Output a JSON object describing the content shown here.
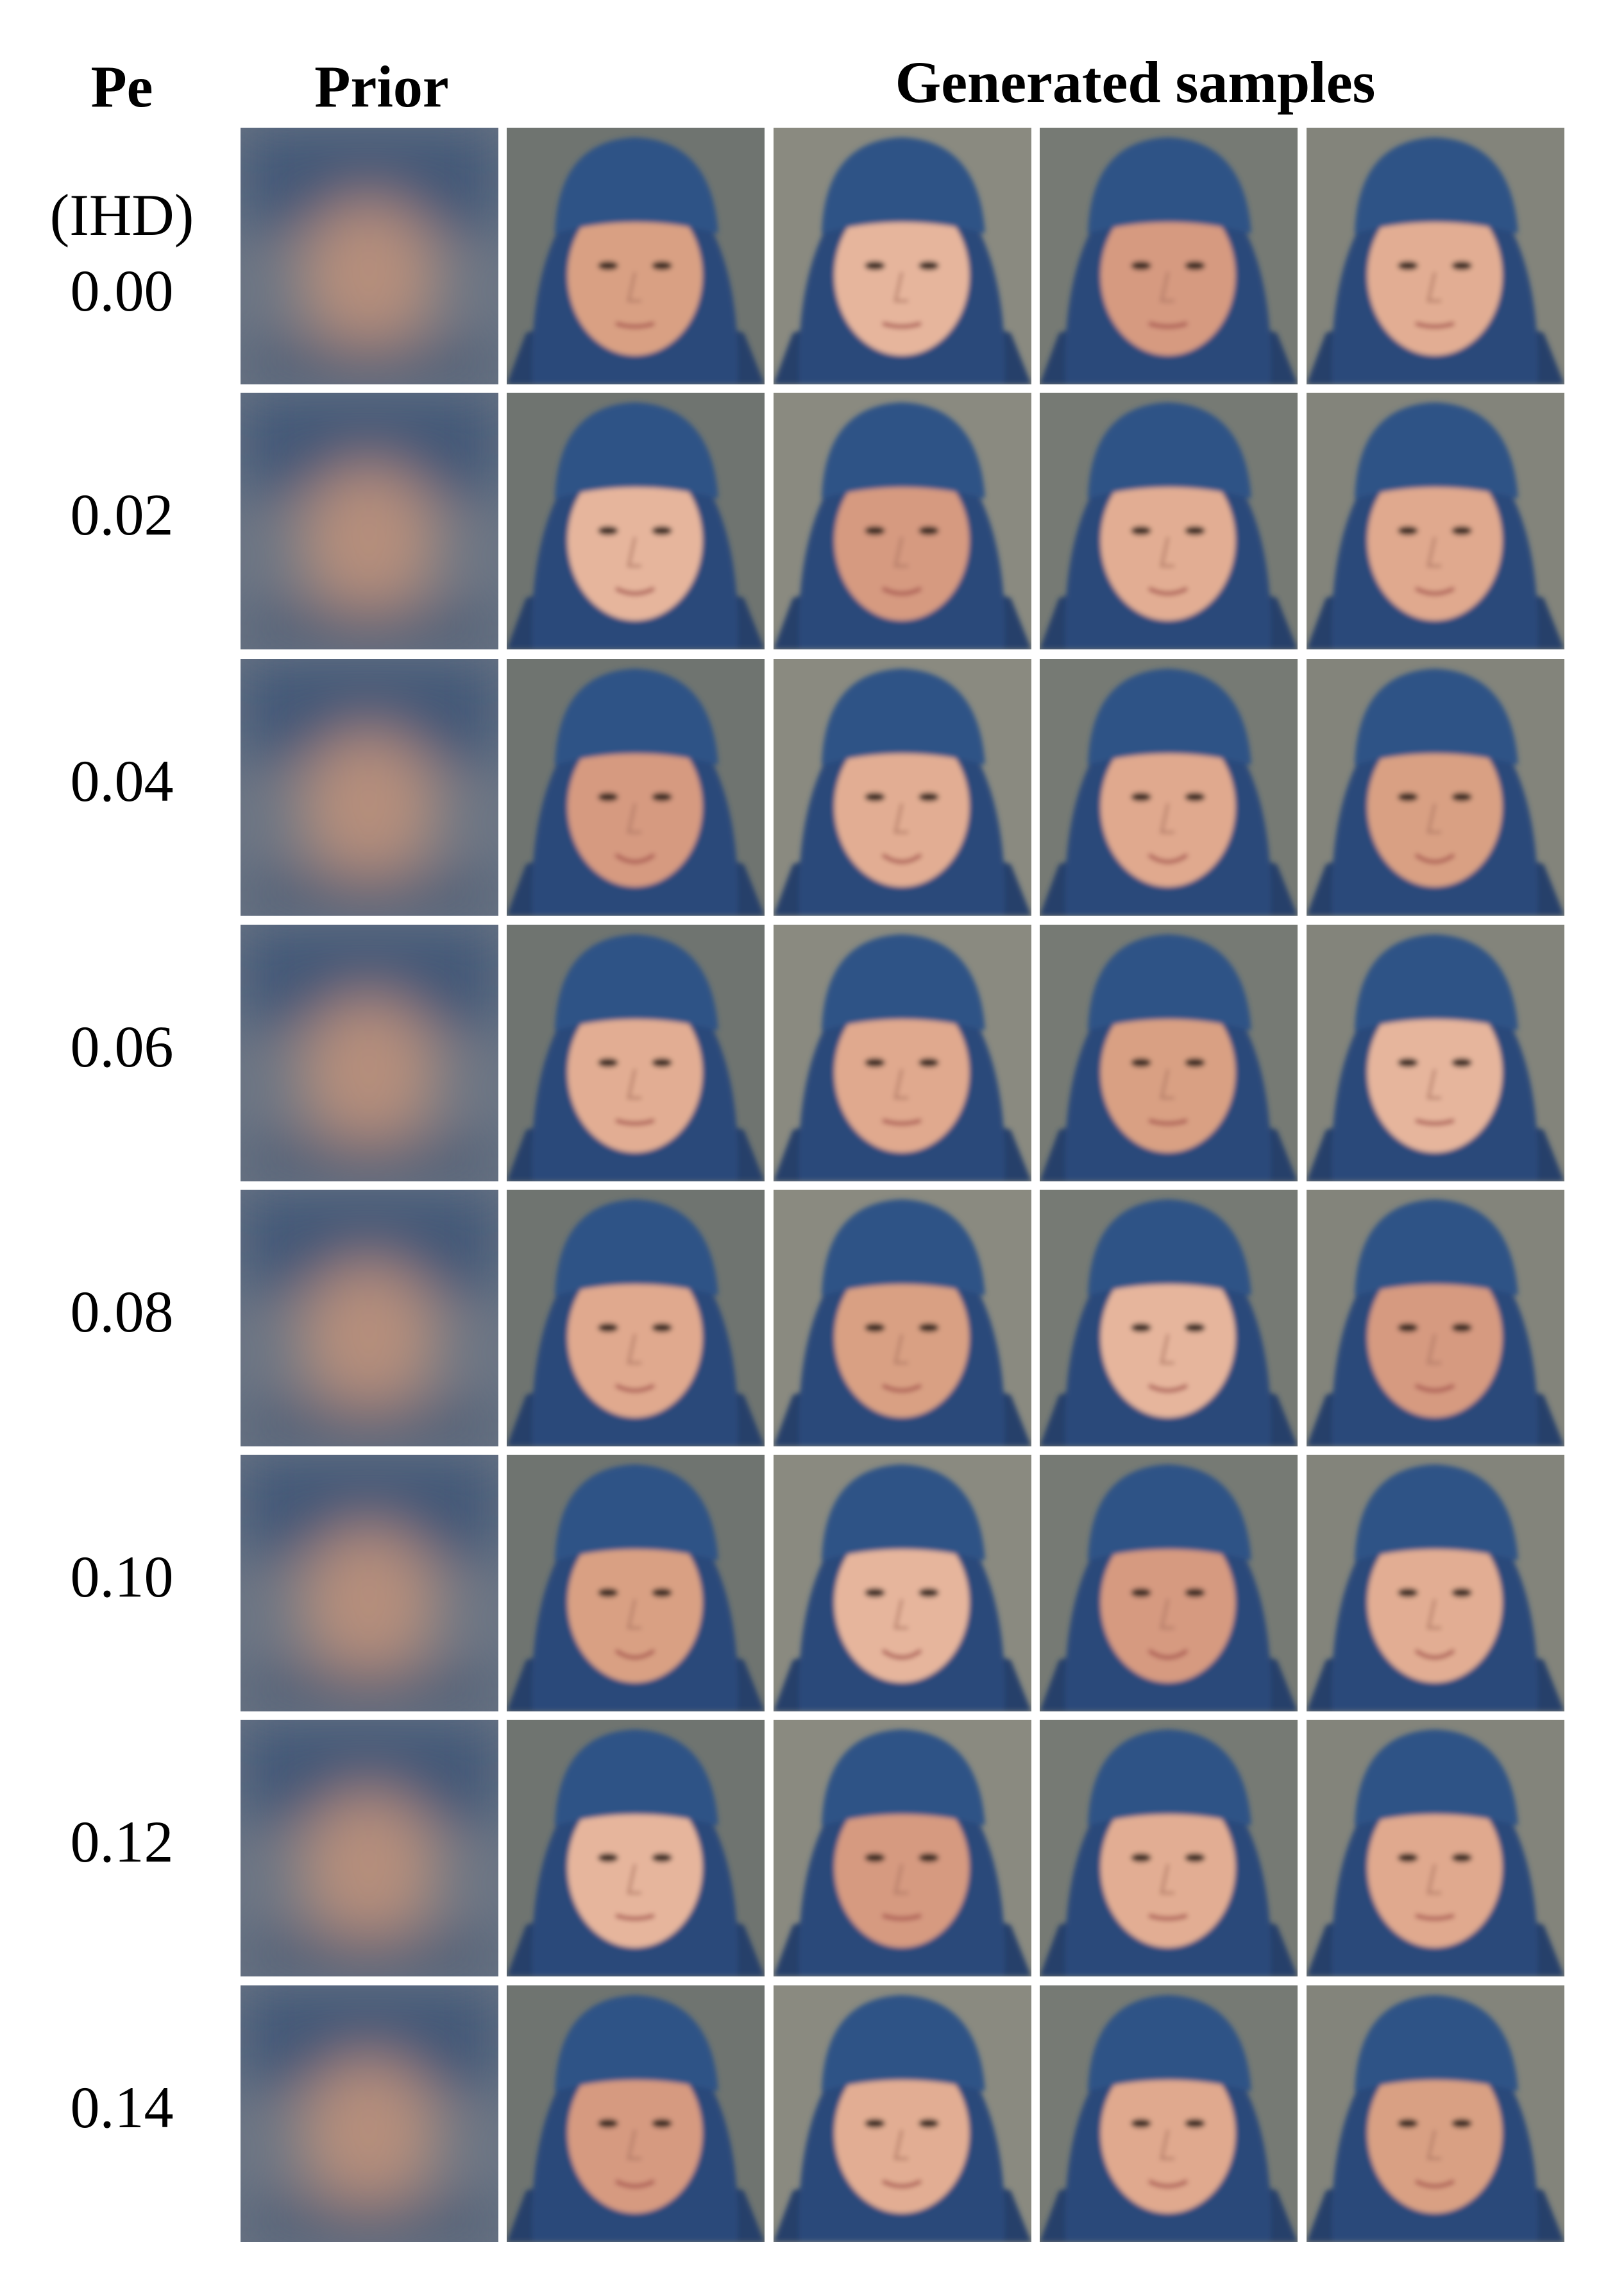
{
  "header": {
    "pe": "Pe",
    "unit": "(IHD)",
    "prior": "Prior",
    "samples": "Generated samples"
  },
  "rows": [
    {
      "pe": "0.00"
    },
    {
      "pe": "0.02"
    },
    {
      "pe": "0.04"
    },
    {
      "pe": "0.06"
    },
    {
      "pe": "0.08"
    },
    {
      "pe": "0.10"
    },
    {
      "pe": "0.12"
    },
    {
      "pe": "0.14"
    }
  ]
}
